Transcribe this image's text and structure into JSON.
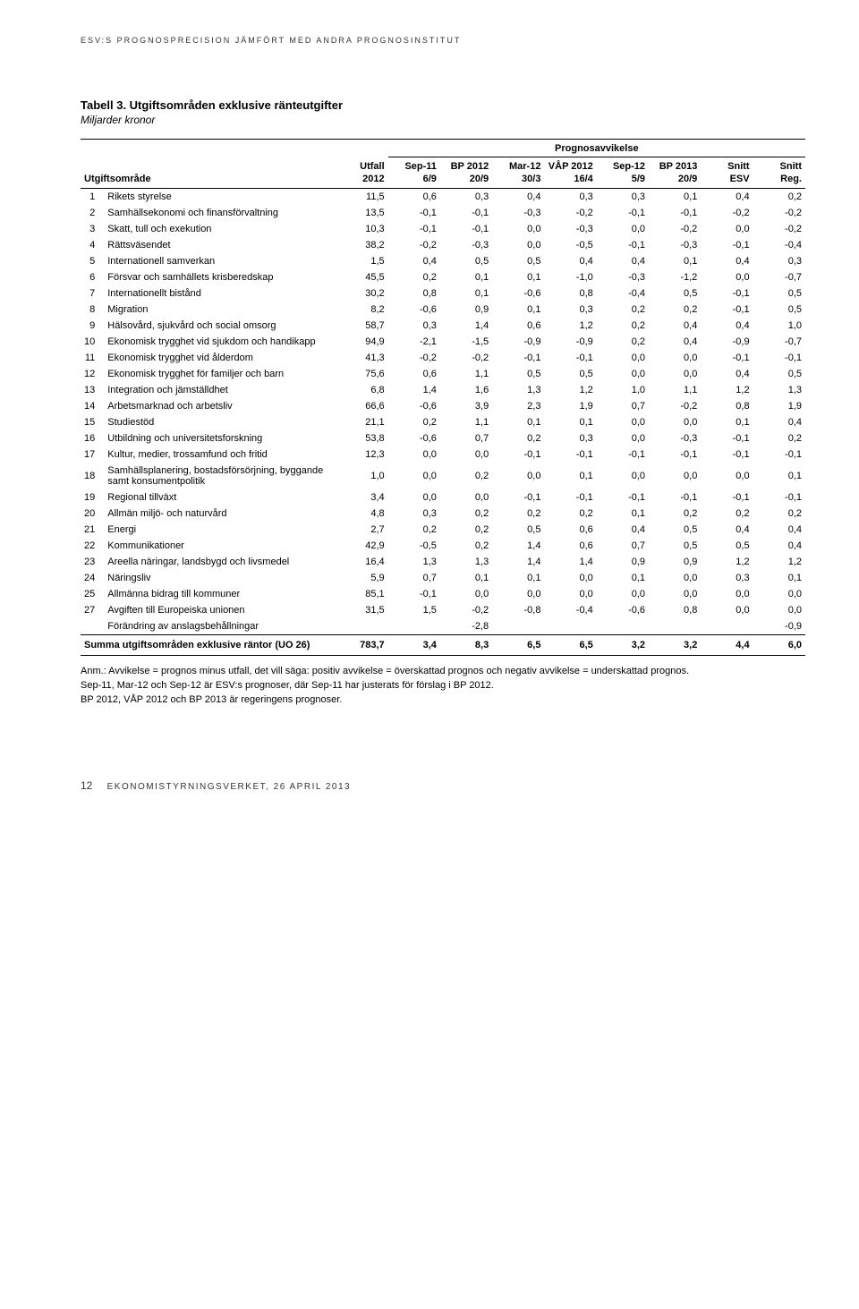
{
  "runningHead": "ESV:S PROGNOSPRECISION JÄMFÖRT MED ANDRA PROGNOSINSTITUT",
  "tableTitle": "Tabell 3. Utgiftsområden exklusive ränteutgifter",
  "tableSubtitle": "Miljarder kronor",
  "groupLabel": "Prognosavvikelse",
  "header1": {
    "left": "",
    "utfall": "Utfall",
    "c1": "Sep-11",
    "c2": "BP 2012",
    "c3": "Mar-12",
    "c4": "VÅP 2012",
    "c5": "Sep-12",
    "c6": "BP 2013",
    "c7": "Snitt",
    "c8": "Snitt"
  },
  "header2": {
    "left": "Utgiftsområde",
    "utfall": "2012",
    "c1": "6/9",
    "c2": "20/9",
    "c3": "30/3",
    "c4": "16/4",
    "c5": "5/9",
    "c6": "20/9",
    "c7": "ESV",
    "c8": "Reg."
  },
  "rows": [
    {
      "n": "1",
      "label": "Rikets styrelse",
      "utfall": "11,5",
      "v": [
        "0,6",
        "0,3",
        "0,4",
        "0,3",
        "0,3",
        "0,1",
        "0,4",
        "0,2"
      ]
    },
    {
      "n": "2",
      "label": "Samhällsekonomi och finansförvaltning",
      "utfall": "13,5",
      "v": [
        "-0,1",
        "-0,1",
        "-0,3",
        "-0,2",
        "-0,1",
        "-0,1",
        "-0,2",
        "-0,2"
      ]
    },
    {
      "n": "3",
      "label": "Skatt, tull och exekution",
      "utfall": "10,3",
      "v": [
        "-0,1",
        "-0,1",
        "0,0",
        "-0,3",
        "0,0",
        "-0,2",
        "0,0",
        "-0,2"
      ]
    },
    {
      "n": "4",
      "label": "Rättsväsendet",
      "utfall": "38,2",
      "v": [
        "-0,2",
        "-0,3",
        "0,0",
        "-0,5",
        "-0,1",
        "-0,3",
        "-0,1",
        "-0,4"
      ]
    },
    {
      "n": "5",
      "label": "Internationell samverkan",
      "utfall": "1,5",
      "v": [
        "0,4",
        "0,5",
        "0,5",
        "0,4",
        "0,4",
        "0,1",
        "0,4",
        "0,3"
      ]
    },
    {
      "n": "6",
      "label": "Försvar och samhällets krisberedskap",
      "utfall": "45,5",
      "v": [
        "0,2",
        "0,1",
        "0,1",
        "-1,0",
        "-0,3",
        "-1,2",
        "0,0",
        "-0,7"
      ]
    },
    {
      "n": "7",
      "label": "Internationellt bistånd",
      "utfall": "30,2",
      "v": [
        "0,8",
        "0,1",
        "-0,6",
        "0,8",
        "-0,4",
        "0,5",
        "-0,1",
        "0,5"
      ]
    },
    {
      "n": "8",
      "label": "Migration",
      "utfall": "8,2",
      "v": [
        "-0,6",
        "0,9",
        "0,1",
        "0,3",
        "0,2",
        "0,2",
        "-0,1",
        "0,5"
      ]
    },
    {
      "n": "9",
      "label": "Hälsovård, sjukvård och social omsorg",
      "utfall": "58,7",
      "v": [
        "0,3",
        "1,4",
        "0,6",
        "1,2",
        "0,2",
        "0,4",
        "0,4",
        "1,0"
      ]
    },
    {
      "n": "10",
      "label": "Ekonomisk trygghet vid sjukdom och handikapp",
      "utfall": "94,9",
      "v": [
        "-2,1",
        "-1,5",
        "-0,9",
        "-0,9",
        "0,2",
        "0,4",
        "-0,9",
        "-0,7"
      ]
    },
    {
      "n": "11",
      "label": "Ekonomisk trygghet vid ålderdom",
      "utfall": "41,3",
      "v": [
        "-0,2",
        "-0,2",
        "-0,1",
        "-0,1",
        "0,0",
        "0,0",
        "-0,1",
        "-0,1"
      ]
    },
    {
      "n": "12",
      "label": "Ekonomisk trygghet för familjer och barn",
      "utfall": "75,6",
      "v": [
        "0,6",
        "1,1",
        "0,5",
        "0,5",
        "0,0",
        "0,0",
        "0,4",
        "0,5"
      ]
    },
    {
      "n": "13",
      "label": "Integration och jämställdhet",
      "utfall": "6,8",
      "v": [
        "1,4",
        "1,6",
        "1,3",
        "1,2",
        "1,0",
        "1,1",
        "1,2",
        "1,3"
      ]
    },
    {
      "n": "14",
      "label": "Arbetsmarknad och arbetsliv",
      "utfall": "66,6",
      "v": [
        "-0,6",
        "3,9",
        "2,3",
        "1,9",
        "0,7",
        "-0,2",
        "0,8",
        "1,9"
      ]
    },
    {
      "n": "15",
      "label": "Studiestöd",
      "utfall": "21,1",
      "v": [
        "0,2",
        "1,1",
        "0,1",
        "0,1",
        "0,0",
        "0,0",
        "0,1",
        "0,4"
      ]
    },
    {
      "n": "16",
      "label": "Utbildning och universitetsforskning",
      "utfall": "53,8",
      "v": [
        "-0,6",
        "0,7",
        "0,2",
        "0,3",
        "0,0",
        "-0,3",
        "-0,1",
        "0,2"
      ]
    },
    {
      "n": "17",
      "label": "Kultur, medier, trossamfund och fritid",
      "utfall": "12,3",
      "v": [
        "0,0",
        "0,0",
        "-0,1",
        "-0,1",
        "-0,1",
        "-0,1",
        "-0,1",
        "-0,1"
      ]
    },
    {
      "n": "18",
      "label": "Samhällsplanering, bostadsförsörjning, byggande samt konsumentpolitik",
      "utfall": "1,0",
      "v": [
        "0,0",
        "0,2",
        "0,0",
        "0,1",
        "0,0",
        "0,0",
        "0,0",
        "0,1"
      ]
    },
    {
      "n": "19",
      "label": "Regional tillväxt",
      "utfall": "3,4",
      "v": [
        "0,0",
        "0,0",
        "-0,1",
        "-0,1",
        "-0,1",
        "-0,1",
        "-0,1",
        "-0,1"
      ]
    },
    {
      "n": "20",
      "label": "Allmän miljö- och naturvård",
      "utfall": "4,8",
      "v": [
        "0,3",
        "0,2",
        "0,2",
        "0,2",
        "0,1",
        "0,2",
        "0,2",
        "0,2"
      ]
    },
    {
      "n": "21",
      "label": "Energi",
      "utfall": "2,7",
      "v": [
        "0,2",
        "0,2",
        "0,5",
        "0,6",
        "0,4",
        "0,5",
        "0,4",
        "0,4"
      ]
    },
    {
      "n": "22",
      "label": "Kommunikationer",
      "utfall": "42,9",
      "v": [
        "-0,5",
        "0,2",
        "1,4",
        "0,6",
        "0,7",
        "0,5",
        "0,5",
        "0,4"
      ]
    },
    {
      "n": "23",
      "label": "Areella näringar, landsbygd och livsmedel",
      "utfall": "16,4",
      "v": [
        "1,3",
        "1,3",
        "1,4",
        "1,4",
        "0,9",
        "0,9",
        "1,2",
        "1,2"
      ]
    },
    {
      "n": "24",
      "label": "Näringsliv",
      "utfall": "5,9",
      "v": [
        "0,7",
        "0,1",
        "0,1",
        "0,0",
        "0,1",
        "0,0",
        "0,3",
        "0,1"
      ]
    },
    {
      "n": "25",
      "label": "Allmänna bidrag till kommuner",
      "utfall": "85,1",
      "v": [
        "-0,1",
        "0,0",
        "0,0",
        "0,0",
        "0,0",
        "0,0",
        "0,0",
        "0,0"
      ]
    },
    {
      "n": "27",
      "label": "Avgiften till Europeiska unionen",
      "utfall": "31,5",
      "v": [
        "1,5",
        "-0,2",
        "-0,8",
        "-0,4",
        "-0,6",
        "0,8",
        "0,0",
        "0,0"
      ]
    },
    {
      "n": "",
      "label": "Förändring av anslagsbehållningar",
      "utfall": "",
      "v": [
        "",
        "-2,8",
        "",
        "",
        "",
        "",
        "",
        "-0,9"
      ]
    }
  ],
  "sumRow": {
    "label": "Summa utgiftsområden exklusive räntor (UO 26)",
    "utfall": "783,7",
    "v": [
      "3,4",
      "8,3",
      "6,5",
      "6,5",
      "3,2",
      "3,2",
      "4,4",
      "6,0"
    ]
  },
  "notes": [
    "Anm.: Avvikelse = prognos minus utfall, det vill säga: positiv avvikelse = överskattad prognos och negativ avvikelse = underskattad prognos.",
    "Sep-11, Mar-12 och Sep-12 är ESV:s prognoser, där Sep-11 har justerats för förslag i BP 2012.",
    "BP 2012, VÅP 2012 och BP 2013 är regeringens prognoser."
  ],
  "footer": {
    "page": "12",
    "text": "EKONOMISTYRNINGSVERKET, 26 APRIL 2013"
  }
}
